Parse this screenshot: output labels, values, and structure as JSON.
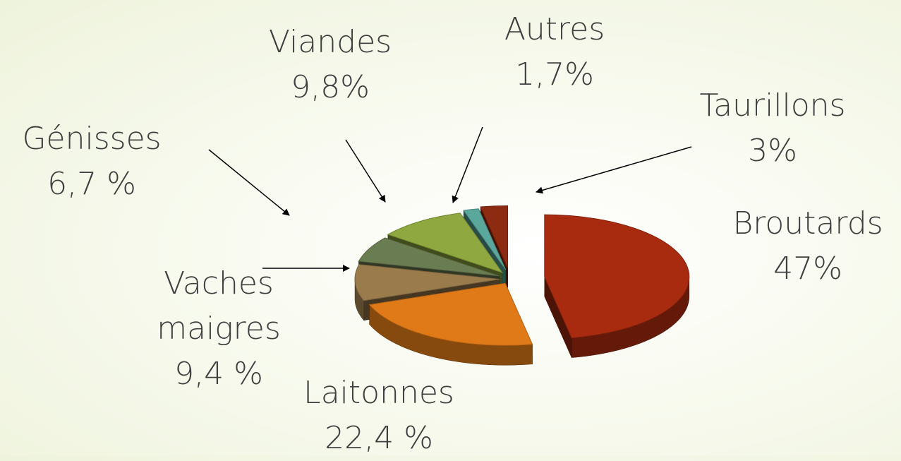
{
  "chart_data": {
    "type": "pie",
    "categories": [
      "Broutards",
      "Laitonnes",
      "Vaches maigres",
      "Génisses",
      "Viandes",
      "Autres",
      "Taurillons"
    ],
    "values": [
      47,
      22.4,
      9.4,
      6.7,
      9.8,
      1.7,
      3
    ],
    "value_labels": [
      "47%",
      "22,4 %",
      "9,4 %",
      "6,7 %",
      "9,8%",
      "1,7%",
      "3%"
    ],
    "colors": [
      "#a82b0f",
      "#e07a18",
      "#9a7b4c",
      "#6a7c52",
      "#8fa83f",
      "#5aa89b",
      "#8c2a12"
    ]
  }
}
